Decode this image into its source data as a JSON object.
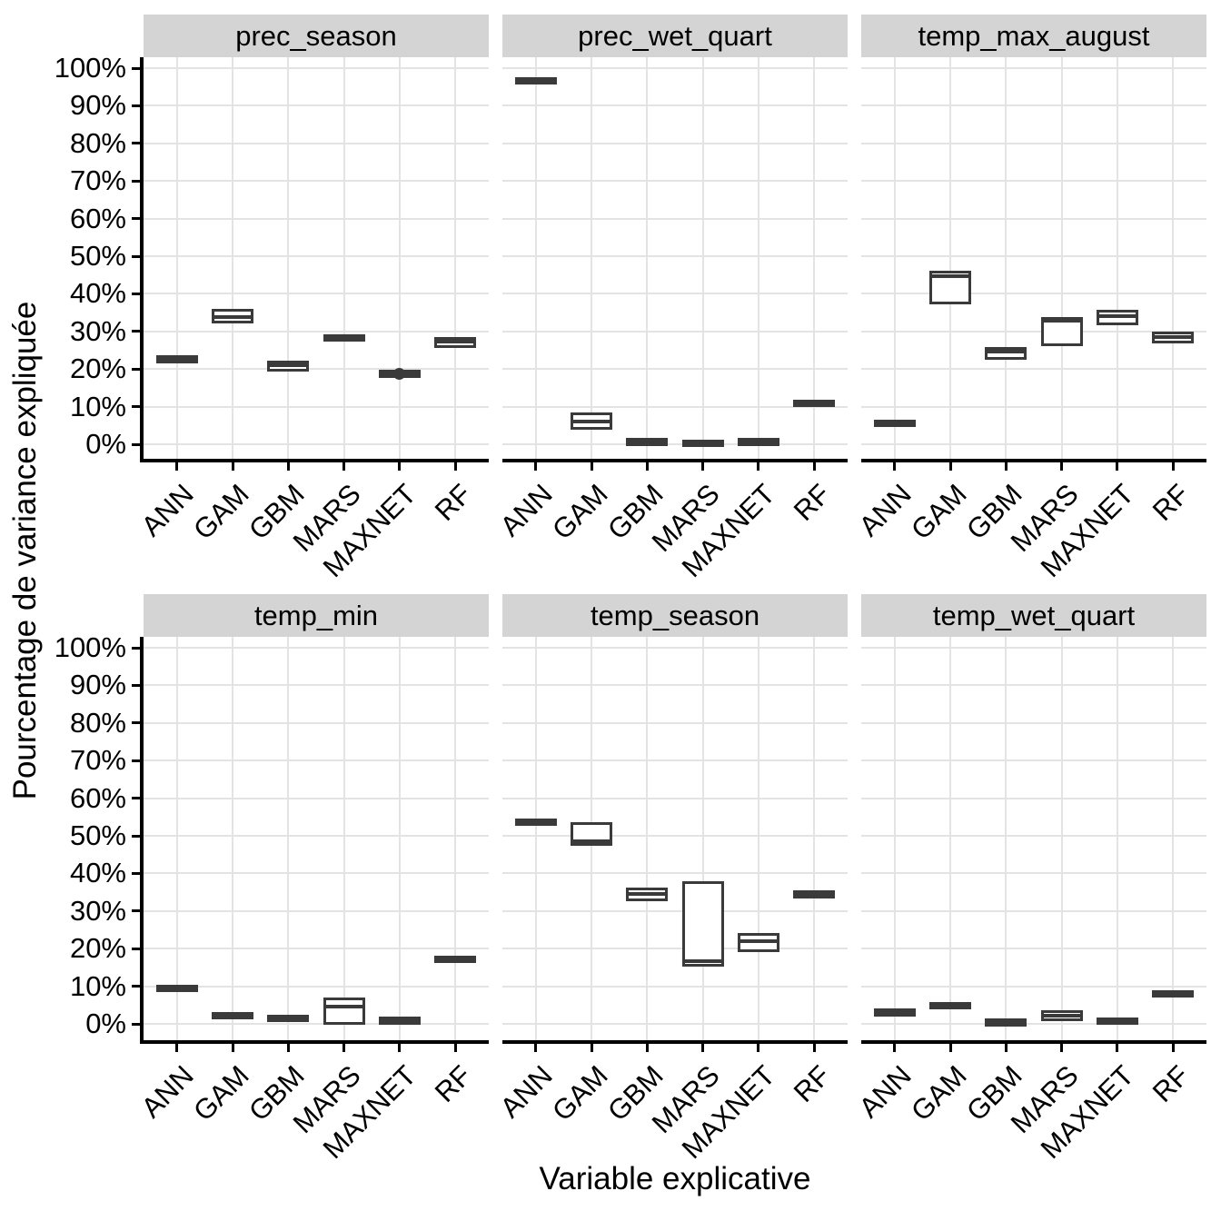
{
  "figure": {
    "y_axis_title": "Pourcentage de variance expliquée",
    "x_axis_title": "Variable explicative"
  },
  "colors": {
    "box_stroke": "#3a3a3a",
    "strip_background": "#d4d4d4",
    "gridline": "#e3e3e3",
    "axis_line": "#000000",
    "text": "#000000",
    "panel_background": "#ffffff"
  },
  "chart_data": {
    "type": "boxplot",
    "layout": "facet_wrap_2rows_x_3cols",
    "title": "",
    "xlabel": "Variable explicative",
    "ylabel": "Pourcentage de variance expliquée",
    "x_categories": [
      "ANN",
      "GAM",
      "GBM",
      "MARS",
      "MAXNET",
      "RF"
    ],
    "ylim": [
      0,
      100
    ],
    "y_tick_values": [
      0,
      10,
      20,
      30,
      40,
      50,
      60,
      70,
      80,
      90,
      100
    ],
    "y_tick_labels": [
      "0%",
      "10%",
      "20%",
      "30%",
      "40%",
      "50%",
      "60%",
      "70%",
      "80%",
      "90%",
      "100%"
    ],
    "grid": "major horizontal every 10% and vertical at each category, light gray on white",
    "legend_position": "none",
    "facets": [
      {
        "title": "prec_season",
        "boxes": [
          {
            "model": "ANN",
            "q1": 22.1,
            "median": 22.5,
            "q3": 22.9,
            "outliers": []
          },
          {
            "model": "GAM",
            "q1": 32.8,
            "median": 33.9,
            "q3": 35.2,
            "outliers": []
          },
          {
            "model": "GBM",
            "q1": 20.0,
            "median": 21.1,
            "q3": 21.6,
            "outliers": []
          },
          {
            "model": "MARS",
            "q1": 28.0,
            "median": 28.3,
            "q3": 28.6,
            "outliers": []
          },
          {
            "model": "MAXNET",
            "q1": 18.4,
            "median": 18.7,
            "q3": 19.0,
            "outliers": [
              18.7
            ]
          },
          {
            "model": "RF",
            "q1": 26.3,
            "median": 27.2,
            "q3": 27.8,
            "outliers": []
          }
        ]
      },
      {
        "title": "prec_wet_quart",
        "boxes": [
          {
            "model": "ANN",
            "q1": 96.3,
            "median": 96.6,
            "q3": 96.9,
            "outliers": []
          },
          {
            "model": "GAM",
            "q1": 4.5,
            "median": 6.0,
            "q3": 7.7,
            "outliers": []
          },
          {
            "model": "GBM",
            "q1": 0.3,
            "median": 0.6,
            "q3": 1.0,
            "outliers": []
          },
          {
            "model": "MARS",
            "q1": 0.0,
            "median": 0.2,
            "q3": 0.4,
            "outliers": []
          },
          {
            "model": "MAXNET",
            "q1": 0.3,
            "median": 0.6,
            "q3": 0.9,
            "outliers": []
          },
          {
            "model": "RF",
            "q1": 10.6,
            "median": 10.9,
            "q3": 11.2,
            "outliers": []
          }
        ]
      },
      {
        "title": "temp_max_august",
        "boxes": [
          {
            "model": "ANN",
            "q1": 5.3,
            "median": 5.6,
            "q3": 5.9,
            "outliers": []
          },
          {
            "model": "GAM",
            "q1": 38.0,
            "median": 44.6,
            "q3": 45.3,
            "outliers": []
          },
          {
            "model": "GBM",
            "q1": 23.1,
            "median": 24.6,
            "q3": 25.2,
            "outliers": []
          },
          {
            "model": "MARS",
            "q1": 26.9,
            "median": 32.9,
            "q3": 33.1,
            "outliers": []
          },
          {
            "model": "MAXNET",
            "q1": 32.4,
            "median": 34.0,
            "q3": 35.0,
            "outliers": []
          },
          {
            "model": "RF",
            "q1": 27.5,
            "median": 28.4,
            "q3": 29.2,
            "outliers": []
          }
        ]
      },
      {
        "title": "temp_min",
        "boxes": [
          {
            "model": "ANN",
            "q1": 9.1,
            "median": 9.4,
            "q3": 9.7,
            "outliers": []
          },
          {
            "model": "GAM",
            "q1": 1.9,
            "median": 2.2,
            "q3": 2.5,
            "outliers": []
          },
          {
            "model": "GBM",
            "q1": 1.2,
            "median": 1.5,
            "q3": 1.8,
            "outliers": []
          },
          {
            "model": "MARS",
            "q1": 0.4,
            "median": 4.6,
            "q3": 6.2,
            "outliers": []
          },
          {
            "model": "MAXNET",
            "q1": 0.5,
            "median": 0.8,
            "q3": 1.1,
            "outliers": []
          },
          {
            "model": "RF",
            "q1": 16.8,
            "median": 17.1,
            "q3": 17.4,
            "outliers": []
          }
        ]
      },
      {
        "title": "temp_season",
        "boxes": [
          {
            "model": "ANN",
            "q1": 53.3,
            "median": 53.6,
            "q3": 53.9,
            "outliers": []
          },
          {
            "model": "GAM",
            "q1": 48.0,
            "median": 48.5,
            "q3": 53.0,
            "outliers": []
          },
          {
            "model": "GBM",
            "q1": 33.4,
            "median": 34.5,
            "q3": 35.6,
            "outliers": []
          },
          {
            "model": "MARS",
            "q1": 16.0,
            "median": 16.6,
            "q3": 37.3,
            "outliers": []
          },
          {
            "model": "MAXNET",
            "q1": 19.9,
            "median": 21.9,
            "q3": 23.4,
            "outliers": []
          },
          {
            "model": "RF",
            "q1": 34.0,
            "median": 34.4,
            "q3": 34.8,
            "outliers": []
          }
        ]
      },
      {
        "title": "temp_wet_quart",
        "boxes": [
          {
            "model": "ANN",
            "q1": 2.7,
            "median": 3.0,
            "q3": 3.3,
            "outliers": []
          },
          {
            "model": "GAM",
            "q1": 4.5,
            "median": 4.8,
            "q3": 5.1,
            "outliers": []
          },
          {
            "model": "GBM",
            "q1": 0.1,
            "median": 0.4,
            "q3": 0.7,
            "outliers": []
          },
          {
            "model": "MARS",
            "q1": 1.4,
            "median": 2.2,
            "q3": 3.0,
            "outliers": []
          },
          {
            "model": "MAXNET",
            "q1": 0.4,
            "median": 0.7,
            "q3": 1.0,
            "outliers": []
          },
          {
            "model": "RF",
            "q1": 7.7,
            "median": 8.0,
            "q3": 8.3,
            "outliers": []
          }
        ]
      }
    ]
  }
}
